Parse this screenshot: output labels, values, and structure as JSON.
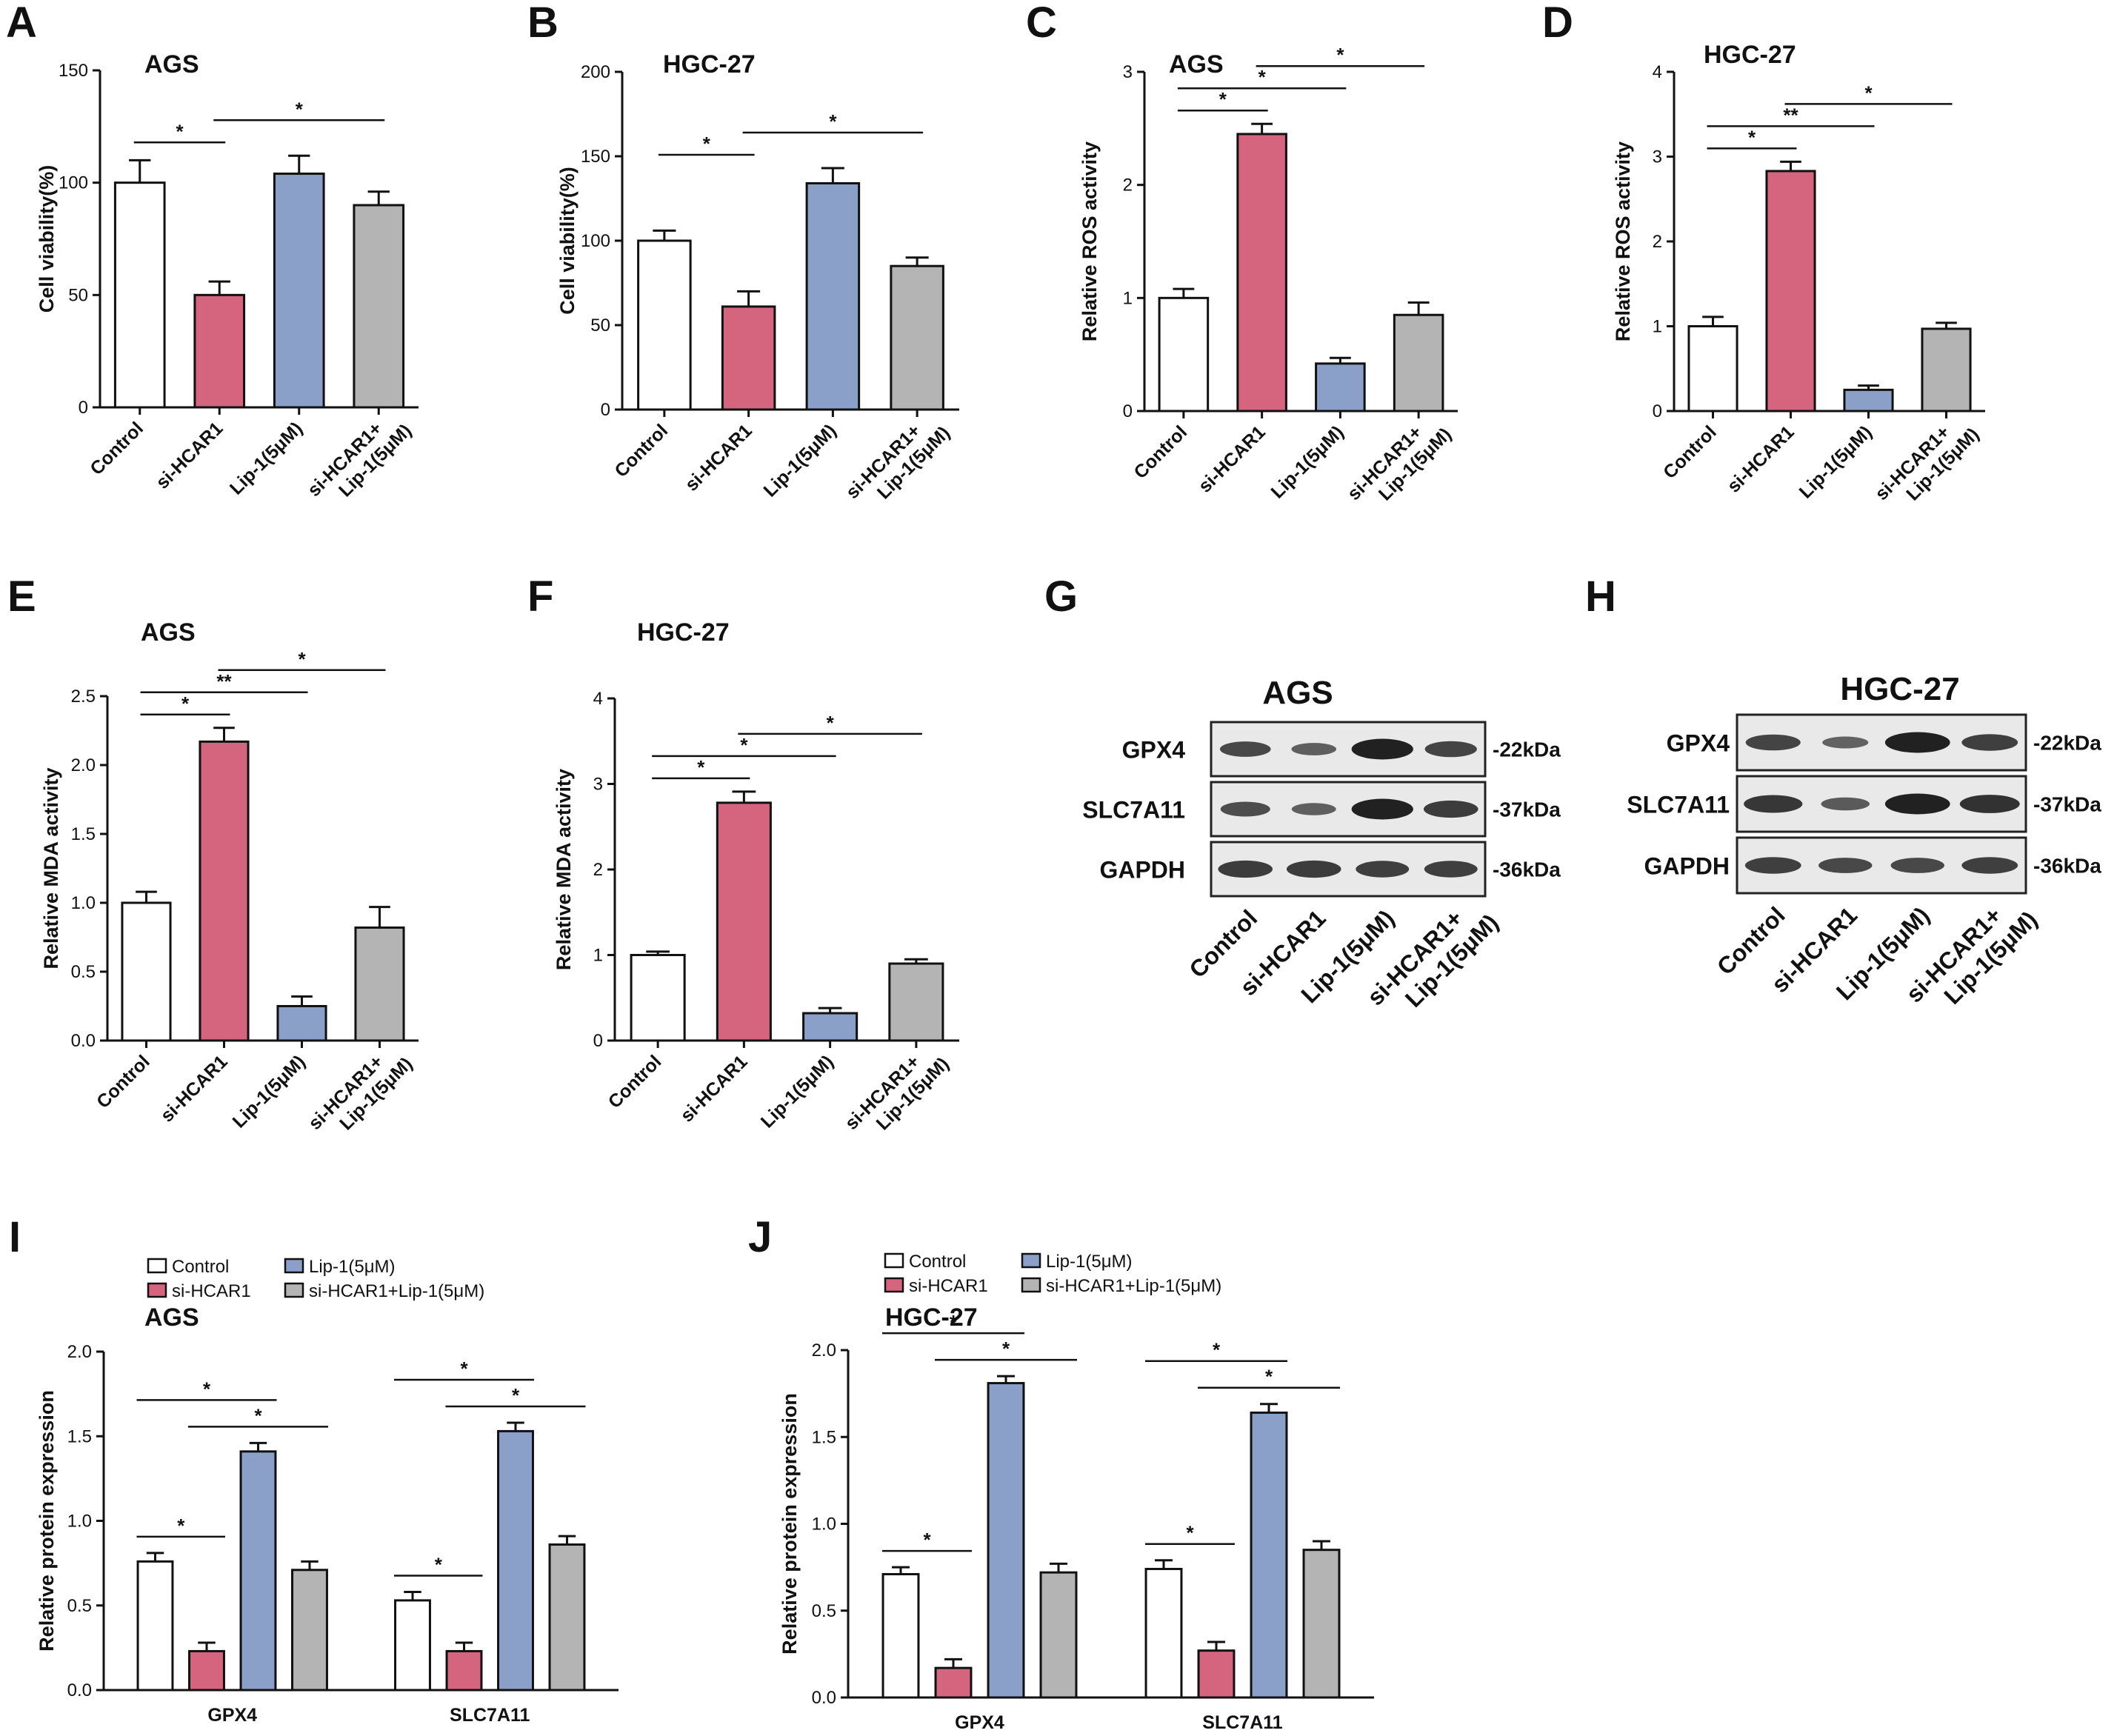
{
  "chart_data": [
    {
      "panel": "A",
      "type": "bar",
      "title": "AGS",
      "ylabel": "Cell viability(%)",
      "ylim": [
        0,
        150
      ],
      "yticks": [
        "0",
        "50",
        "100",
        "150"
      ],
      "categories": [
        "Control",
        "si-HCAR1",
        "Lip-1(5μM)",
        "si-HCAR1+\nLip-1(5μM)"
      ],
      "values": [
        100,
        50,
        104,
        90
      ],
      "errors": [
        10,
        6,
        8,
        6
      ],
      "colors": [
        "#ffffff",
        "#d5647f",
        "#8aa0c8",
        "#b4b4b4"
      ],
      "significance": [
        {
          "from": 0,
          "to": 1,
          "label": "*"
        },
        {
          "from": 1,
          "to": 3,
          "label": "*"
        }
      ]
    },
    {
      "panel": "B",
      "type": "bar",
      "title": "HGC-27",
      "ylabel": "Cell viability(%)",
      "ylim": [
        0,
        200
      ],
      "yticks": [
        "0",
        "50",
        "100",
        "150",
        "200"
      ],
      "categories": [
        "Control",
        "si-HCAR1",
        "Lip-1(5μM)",
        "si-HCAR1+\nLip-1(5μM)"
      ],
      "values": [
        100,
        61,
        134,
        85
      ],
      "errors": [
        6,
        9,
        9,
        5
      ],
      "colors": [
        "#ffffff",
        "#d5647f",
        "#8aa0c8",
        "#b4b4b4"
      ],
      "significance": [
        {
          "from": 0,
          "to": 1,
          "label": "*"
        },
        {
          "from": 1,
          "to": 3,
          "label": "*"
        }
      ]
    },
    {
      "panel": "C",
      "type": "bar",
      "title": "AGS",
      "ylabel": "Relative ROS activity",
      "ylim": [
        0,
        3
      ],
      "yticks": [
        "0",
        "1",
        "2",
        "3"
      ],
      "categories": [
        "Control",
        "si-HCAR1",
        "Lip-1(5μM)",
        "si-HCAR1+\nLip-1(5μM)"
      ],
      "values": [
        1.0,
        2.45,
        0.42,
        0.85
      ],
      "errors": [
        0.08,
        0.09,
        0.05,
        0.11
      ],
      "colors": [
        "#ffffff",
        "#d5647f",
        "#8aa0c8",
        "#b4b4b4"
      ],
      "significance": [
        {
          "from": 0,
          "to": 1,
          "label": "*"
        },
        {
          "from": 0,
          "to": 2,
          "label": "*"
        },
        {
          "from": 1,
          "to": 3,
          "label": "*"
        }
      ]
    },
    {
      "panel": "D",
      "type": "bar",
      "title": "HGC-27",
      "ylabel": "Relative ROS activity",
      "ylim": [
        0,
        4
      ],
      "yticks": [
        "0",
        "1",
        "2",
        "3",
        "4"
      ],
      "categories": [
        "Control",
        "si-HCAR1",
        "Lip-1(5μM)",
        "si-HCAR1+\nLip-1(5μM)"
      ],
      "values": [
        1.0,
        2.83,
        0.25,
        0.97
      ],
      "errors": [
        0.11,
        0.11,
        0.05,
        0.07
      ],
      "colors": [
        "#ffffff",
        "#d5647f",
        "#8aa0c8",
        "#b4b4b4"
      ],
      "significance": [
        {
          "from": 0,
          "to": 1,
          "label": "*"
        },
        {
          "from": 0,
          "to": 2,
          "label": "**"
        },
        {
          "from": 1,
          "to": 3,
          "label": "*"
        }
      ]
    },
    {
      "panel": "E",
      "type": "bar",
      "title": "AGS",
      "ylabel": "Relative MDA activity",
      "ylim": [
        0,
        2.5
      ],
      "yticks": [
        "0.0",
        "0.5",
        "1.0",
        "1.5",
        "2.0",
        "2.5"
      ],
      "categories": [
        "Control",
        "si-HCAR1",
        "Lip-1(5μM)",
        "si-HCAR1+\nLip-1(5μM)"
      ],
      "values": [
        1.0,
        2.17,
        0.25,
        0.82
      ],
      "errors": [
        0.08,
        0.1,
        0.07,
        0.15
      ],
      "colors": [
        "#ffffff",
        "#d5647f",
        "#8aa0c8",
        "#b4b4b4"
      ],
      "significance": [
        {
          "from": 0,
          "to": 1,
          "label": "*"
        },
        {
          "from": 0,
          "to": 2,
          "label": "**"
        },
        {
          "from": 1,
          "to": 3,
          "label": "*"
        }
      ]
    },
    {
      "panel": "F",
      "type": "bar",
      "title": "HGC-27",
      "ylabel": "Relative MDA activity",
      "ylim": [
        0,
        4
      ],
      "yticks": [
        "0",
        "1",
        "2",
        "3",
        "4"
      ],
      "categories": [
        "Control",
        "si-HCAR1",
        "Lip-1(5μM)",
        "si-HCAR1+\nLip-1(5μM)"
      ],
      "values": [
        1.0,
        2.78,
        0.32,
        0.9
      ],
      "errors": [
        0.04,
        0.13,
        0.06,
        0.05
      ],
      "colors": [
        "#ffffff",
        "#d5647f",
        "#8aa0c8",
        "#b4b4b4"
      ],
      "significance": [
        {
          "from": 0,
          "to": 1,
          "label": "*"
        },
        {
          "from": 0,
          "to": 2,
          "label": "*"
        },
        {
          "from": 1,
          "to": 3,
          "label": "*"
        }
      ]
    },
    {
      "panel": "I",
      "type": "bar",
      "title": "AGS",
      "ylabel": "Relative protein expression",
      "ylim": [
        0,
        2.0
      ],
      "yticks": [
        "0.0",
        "0.5",
        "1.0",
        "1.5",
        "2.0"
      ],
      "categories": [
        "GPX4",
        "SLC7A11"
      ],
      "legend": [
        "Control",
        "si-HCAR1",
        "Lip-1(5μM)",
        "si-HCAR1+Lip-1(5μM)"
      ],
      "colors": [
        "#ffffff",
        "#d5647f",
        "#8aa0c8",
        "#b4b4b4"
      ],
      "series": [
        {
          "name": "Control",
          "values": [
            0.76,
            0.53
          ],
          "errors": [
            0.05,
            0.05
          ]
        },
        {
          "name": "si-HCAR1",
          "values": [
            0.23,
            0.23
          ],
          "errors": [
            0.05,
            0.05
          ]
        },
        {
          "name": "Lip-1(5μM)",
          "values": [
            1.41,
            1.53
          ],
          "errors": [
            0.05,
            0.05
          ]
        },
        {
          "name": "si-HCAR1+Lip-1(5μM)",
          "values": [
            0.71,
            0.86
          ],
          "errors": [
            0.05,
            0.05
          ]
        }
      ],
      "significance": [
        {
          "group": 0,
          "from": 0,
          "to": 1,
          "label": "*"
        },
        {
          "group": 0,
          "from": 0,
          "to": 2,
          "label": "*"
        },
        {
          "group": 0,
          "from": 1,
          "to": 3,
          "label": "*"
        },
        {
          "group": 1,
          "from": 0,
          "to": 1,
          "label": "*"
        },
        {
          "group": 1,
          "from": 0,
          "to": 2,
          "label": "*"
        },
        {
          "group": 1,
          "from": 1,
          "to": 3,
          "label": "*"
        }
      ]
    },
    {
      "panel": "J",
      "type": "bar",
      "title": "HGC-27",
      "ylabel": "Relative protein expression",
      "ylim": [
        0,
        2.0
      ],
      "yticks": [
        "0.0",
        "0.5",
        "1.0",
        "1.5",
        "2.0"
      ],
      "categories": [
        "GPX4",
        "SLC7A11"
      ],
      "legend": [
        "Control",
        "si-HCAR1",
        "Lip-1(5μM)",
        "si-HCAR1+Lip-1(5μM)"
      ],
      "colors": [
        "#ffffff",
        "#d5647f",
        "#8aa0c8",
        "#b4b4b4"
      ],
      "series": [
        {
          "name": "Control",
          "values": [
            0.71,
            0.74
          ],
          "errors": [
            0.04,
            0.05
          ]
        },
        {
          "name": "si-HCAR1",
          "values": [
            0.17,
            0.27
          ],
          "errors": [
            0.05,
            0.05
          ]
        },
        {
          "name": "Lip-1(5μM)",
          "values": [
            1.81,
            1.64
          ],
          "errors": [
            0.04,
            0.05
          ]
        },
        {
          "name": "si-HCAR1+Lip-1(5μM)",
          "values": [
            0.72,
            0.85
          ],
          "errors": [
            0.05,
            0.05
          ]
        }
      ],
      "significance": [
        {
          "group": 0,
          "from": 0,
          "to": 1,
          "label": "*"
        },
        {
          "group": 0,
          "from": 0,
          "to": 2,
          "label": "*"
        },
        {
          "group": 0,
          "from": 1,
          "to": 3,
          "label": "*"
        },
        {
          "group": 1,
          "from": 0,
          "to": 1,
          "label": "*"
        },
        {
          "group": 1,
          "from": 0,
          "to": 2,
          "label": "*"
        },
        {
          "group": 1,
          "from": 1,
          "to": 3,
          "label": "*"
        }
      ]
    }
  ],
  "western_blots": [
    {
      "panel": "G",
      "title": "AGS",
      "rows": [
        {
          "protein": "GPX4",
          "size": "-22kDa",
          "intensities": [
            0.55,
            0.3,
            1.0,
            0.6
          ]
        },
        {
          "protein": "SLC7A11",
          "size": "-37kDa",
          "intensities": [
            0.5,
            0.28,
            1.0,
            0.7
          ]
        },
        {
          "protein": "GAPDH",
          "size": "-36kDa",
          "intensities": [
            0.7,
            0.7,
            0.65,
            0.65
          ]
        }
      ],
      "lanes": [
        "Control",
        "si-HCAR1",
        "Lip-1(5μM)",
        "si-HCAR1+\nLip-1(5μM)"
      ]
    },
    {
      "panel": "H",
      "title": "HGC-27",
      "rows": [
        {
          "protein": "GPX4",
          "size": "-22kDa",
          "intensities": [
            0.6,
            0.25,
            1.0,
            0.65
          ]
        },
        {
          "protein": "SLC7A11",
          "size": "-37kDa",
          "intensities": [
            0.75,
            0.35,
            1.0,
            0.8
          ]
        },
        {
          "protein": "GAPDH",
          "size": "-36kDa",
          "intensities": [
            0.65,
            0.55,
            0.55,
            0.65
          ]
        }
      ],
      "lanes": [
        "Control",
        "si-HCAR1",
        "Lip-1(5μM)",
        "si-HCAR1+\nLip-1(5μM)"
      ]
    }
  ]
}
